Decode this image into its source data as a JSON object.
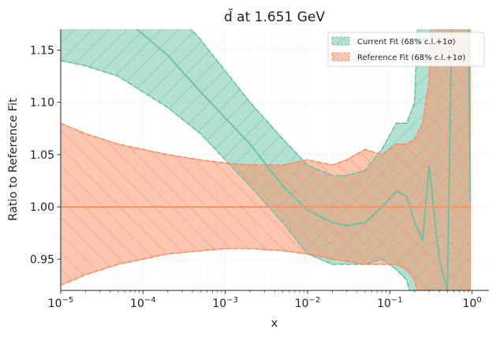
{
  "chart_data": {
    "type": "line",
    "title": "d̄ at 1.651 GeV",
    "xlabel": "x",
    "ylabel": "Ratio to Reference Fit",
    "xscale": "log",
    "xlim": [
      1e-05,
      1.6
    ],
    "ylim": [
      0.92,
      1.17
    ],
    "x_ticks": [
      1e-05,
      0.0001,
      0.001,
      0.01,
      0.1,
      1
    ],
    "x_tick_labels": [
      {
        "base": "10",
        "exp": "−5"
      },
      {
        "base": "10",
        "exp": "−4"
      },
      {
        "base": "10",
        "exp": "−3"
      },
      {
        "base": "10",
        "exp": "−2"
      },
      {
        "base": "10",
        "exp": "−1"
      },
      {
        "base": "10",
        "exp": "0"
      }
    ],
    "y_ticks": [
      0.95,
      1.0,
      1.05,
      1.1,
      1.15
    ],
    "y_tick_labels": [
      "0.95",
      "1.00",
      "1.05",
      "1.10",
      "1.15"
    ],
    "grid": true,
    "legend_position": "top-right",
    "colors": {
      "current": "#66c2a5",
      "reference": "#fc8d62"
    },
    "series": [
      {
        "name": "Current Fit (68% c.l.+1σ)",
        "color": "#66c2a5",
        "x": [
          1e-05,
          2e-05,
          5e-05,
          0.0001,
          0.0002,
          0.0005,
          0.001,
          0.002,
          0.005,
          0.01,
          0.02,
          0.03,
          0.05,
          0.08,
          0.12,
          0.16,
          0.2,
          0.25,
          0.3,
          0.35,
          0.4,
          0.5,
          0.6,
          0.7,
          0.8,
          0.9,
          0.95
        ],
        "central": [
          1.25,
          1.22,
          1.185,
          1.165,
          1.145,
          1.11,
          1.085,
          1.06,
          1.02,
          0.997,
          0.985,
          0.982,
          0.985,
          1.0,
          1.015,
          1.01,
          0.985,
          0.968,
          1.04,
          0.99,
          0.95,
          0.92,
          1.3,
          1.3,
          1.3,
          1.18,
          1.005
        ],
        "band_upper": [
          1.24,
          1.23,
          1.22,
          1.21,
          1.195,
          1.16,
          1.13,
          1.1,
          1.065,
          1.04,
          1.03,
          1.03,
          1.035,
          1.055,
          1.08,
          1.08,
          1.1,
          1.3,
          1.3,
          1.3,
          1.3,
          1.3,
          1.3,
          1.3,
          1.3,
          1.3,
          1.3
        ],
        "band_lower": [
          1.14,
          1.135,
          1.125,
          1.11,
          1.095,
          1.07,
          1.045,
          1.02,
          0.985,
          0.955,
          0.945,
          0.945,
          0.945,
          0.95,
          0.94,
          0.93,
          0.9,
          0.88,
          0.88,
          0.88,
          0.88,
          0.88,
          0.88,
          0.88,
          0.88,
          0.88,
          0.88
        ]
      },
      {
        "name": "Reference Fit (68% c.l.+1σ)",
        "color": "#fc8d62",
        "x": [
          1e-05,
          2e-05,
          5e-05,
          0.0001,
          0.0002,
          0.0005,
          0.001,
          0.002,
          0.005,
          0.01,
          0.02,
          0.03,
          0.05,
          0.08,
          0.12,
          0.16,
          0.2,
          0.25,
          0.3,
          0.35,
          0.4,
          0.5,
          0.6,
          0.7,
          0.8,
          0.9,
          0.95
        ],
        "central": [
          1.0,
          1.0,
          1.0,
          1.0,
          1.0,
          1.0,
          1.0,
          1.0,
          1.0,
          1.0,
          1.0,
          1.0,
          1.0,
          1.0,
          1.0,
          1.0,
          1.0,
          1.0,
          1.0,
          1.0,
          1.0,
          1.0,
          1.0,
          1.0,
          1.0,
          1.0,
          1.0
        ],
        "band_upper": [
          1.08,
          1.07,
          1.06,
          1.055,
          1.05,
          1.045,
          1.042,
          1.04,
          1.04,
          1.045,
          1.04,
          1.045,
          1.055,
          1.05,
          1.06,
          1.06,
          1.065,
          1.08,
          1.12,
          1.3,
          1.3,
          1.3,
          1.3,
          1.3,
          1.3,
          1.3,
          1.3
        ],
        "band_lower": [
          0.925,
          0.935,
          0.945,
          0.95,
          0.955,
          0.958,
          0.96,
          0.96,
          0.958,
          0.955,
          0.95,
          0.948,
          0.945,
          0.945,
          0.945,
          0.94,
          0.93,
          0.9,
          0.88,
          0.88,
          0.88,
          0.88,
          0.88,
          0.88,
          0.88,
          0.88,
          0.88
        ]
      }
    ]
  }
}
